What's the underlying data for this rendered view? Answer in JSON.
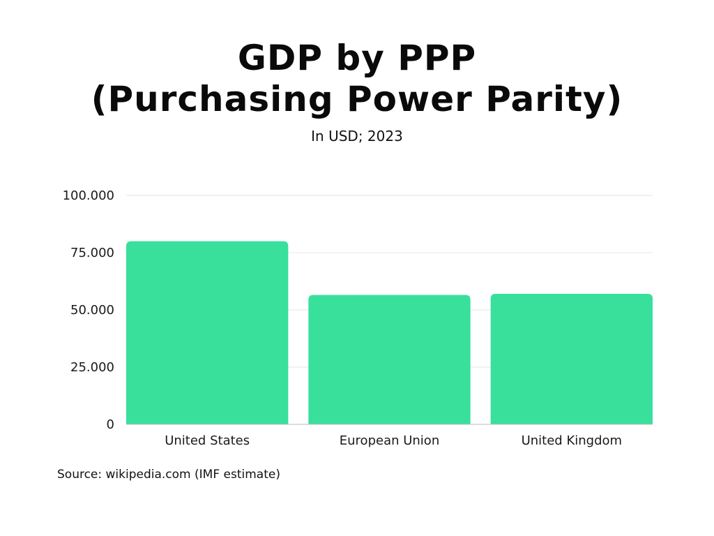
{
  "title": {
    "line1": "GDP by PPP",
    "line2": "(Purchasing Power Parity)"
  },
  "subtitle": "In USD; 2023",
  "source": "Source: wikipedia.com (IMF estimate)",
  "colors": {
    "bar": "#38e09b",
    "grid": "#e4e4e4",
    "axis": "#bdbdbd"
  },
  "chart_data": {
    "type": "bar",
    "title": "GDP by PPP (Purchasing Power Parity)",
    "subtitle": "In USD; 2023",
    "xlabel": "",
    "ylabel": "",
    "categories": [
      "United States",
      "European Union",
      "United Kingdom"
    ],
    "values": [
      80000,
      56500,
      57000
    ],
    "ylim": [
      0,
      100000
    ],
    "yticks": [
      0,
      25000,
      50000,
      75000,
      100000
    ],
    "ytick_labels": [
      "0",
      "25.000",
      "50.000",
      "75.000",
      "100.000"
    ],
    "grid": true,
    "legend": "none"
  }
}
